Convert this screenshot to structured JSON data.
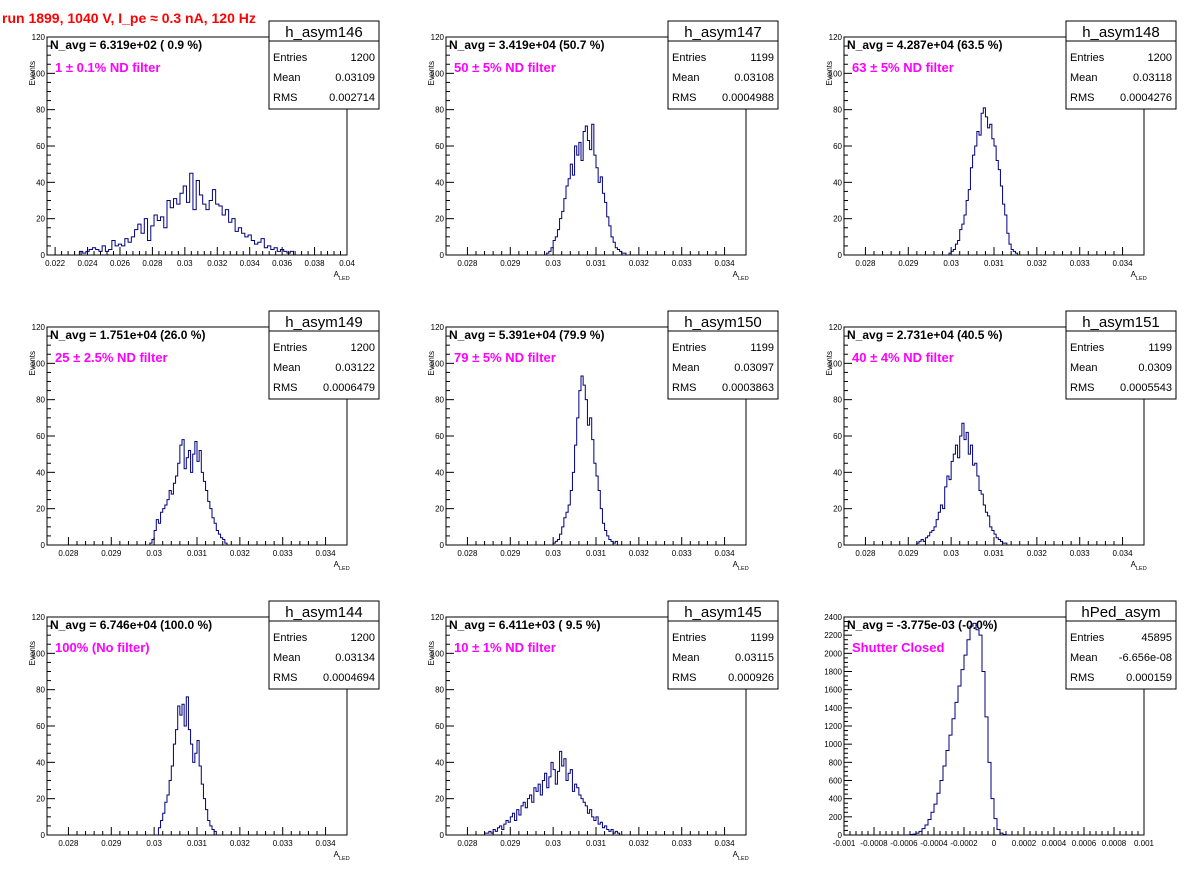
{
  "page_title": "run 1899,  1040 V, I_pe ≈ 0.3 nA, 120 Hz",
  "colors": {
    "histogram_line": "#000080",
    "annotation": "#ff00ff",
    "run_title": "#ff0000",
    "axis": "#000000"
  },
  "stats_labels": {
    "entries": "Entries",
    "mean": "Mean",
    "rms": "RMS"
  },
  "chart_data": [
    {
      "type": "histogram",
      "name": "h_asym146",
      "nstat": "N_avg = 6.319e+02 ( 0.9 %)",
      "filter_label": "1 ± 0.1% ND filter",
      "stats": {
        "entries": "1200",
        "mean": "0.03109",
        "rms": "0.002714"
      },
      "xlabel": "A",
      "xlabel_sub": "LED",
      "ylabel": "Events",
      "xlim": [
        0.0215,
        0.04
      ],
      "ylim": [
        0,
        120
      ],
      "xticks": [
        0.022,
        0.024,
        0.026,
        0.028,
        0.03,
        0.032,
        0.034,
        0.036,
        0.038,
        0.04
      ],
      "xtick_labels": [
        "0.022",
        "0.024",
        "0.026",
        "0.028",
        "0.03",
        "0.032",
        "0.034",
        "0.036",
        "0.038",
        "0.04"
      ],
      "yticks": [
        0,
        20,
        40,
        60,
        80,
        100,
        120
      ],
      "ytick_labels": [
        "0",
        "20",
        "40",
        "60",
        "80",
        "100",
        "120"
      ],
      "bin_start": 0.0235,
      "bin_width": 0.0002,
      "counts": [
        2,
        1,
        2,
        3,
        4,
        3,
        2,
        5,
        2,
        3,
        8,
        5,
        6,
        5,
        9,
        7,
        10,
        14,
        17,
        12,
        20,
        8,
        16,
        22,
        19,
        21,
        15,
        30,
        26,
        31,
        28,
        34,
        38,
        29,
        45,
        25,
        41,
        33,
        28,
        25,
        30,
        36,
        28,
        27,
        22,
        25,
        18,
        20,
        13,
        15,
        12,
        10,
        11,
        8,
        6,
        7,
        9,
        4,
        5,
        3,
        4,
        2,
        3,
        2,
        1,
        2
      ]
    },
    {
      "type": "histogram",
      "name": "h_asym147",
      "nstat": "N_avg = 3.419e+04 (50.7 %)",
      "filter_label": "50 ± 5% ND filter",
      "stats": {
        "entries": "1199",
        "mean": "0.03108",
        "rms": "0.0004988"
      },
      "xlabel": "A",
      "xlabel_sub": "LED",
      "ylabel": "Events",
      "xlim": [
        0.0275,
        0.0345
      ],
      "ylim": [
        0,
        120
      ],
      "xticks": [
        0.028,
        0.029,
        0.03,
        0.031,
        0.032,
        0.033,
        0.034
      ],
      "xtick_labels": [
        "0.028",
        "0.029",
        "0.03",
        "0.031",
        "0.032",
        "0.033",
        "0.034"
      ],
      "yticks": [
        0,
        20,
        40,
        60,
        80,
        100,
        120
      ],
      "ytick_labels": [
        "0",
        "20",
        "40",
        "60",
        "80",
        "100",
        "120"
      ],
      "bin_start": 0.02985,
      "bin_width": 5e-05,
      "counts": [
        1,
        2,
        4,
        8,
        10,
        14,
        20,
        24,
        31,
        38,
        42,
        50,
        44,
        60,
        55,
        62,
        52,
        68,
        71,
        63,
        58,
        72,
        55,
        48,
        40,
        43,
        34,
        29,
        21,
        16,
        10,
        7,
        4,
        3,
        2,
        1,
        1
      ]
    },
    {
      "type": "histogram",
      "name": "h_asym148",
      "nstat": "N_avg = 4.287e+04 (63.5 %)",
      "filter_label": "63 ± 5% ND filter",
      "stats": {
        "entries": "1200",
        "mean": "0.03118",
        "rms": "0.0004276"
      },
      "xlabel": "A",
      "xlabel_sub": "LED",
      "ylabel": "Events",
      "xlim": [
        0.0275,
        0.0345
      ],
      "ylim": [
        0,
        120
      ],
      "xticks": [
        0.028,
        0.029,
        0.03,
        0.031,
        0.032,
        0.033,
        0.034
      ],
      "xtick_labels": [
        "0.028",
        "0.029",
        "0.03",
        "0.031",
        "0.032",
        "0.033",
        "0.034"
      ],
      "yticks": [
        0,
        20,
        40,
        60,
        80,
        100,
        120
      ],
      "ytick_labels": [
        "0",
        "20",
        "40",
        "60",
        "80",
        "100",
        "120"
      ],
      "bin_start": 0.02995,
      "bin_width": 5e-05,
      "counts": [
        1,
        2,
        3,
        6,
        8,
        14,
        17,
        22,
        30,
        36,
        48,
        55,
        60,
        68,
        66,
        78,
        81,
        76,
        70,
        72,
        64,
        60,
        52,
        47,
        38,
        28,
        22,
        12,
        6,
        3,
        2,
        1
      ]
    },
    {
      "type": "histogram",
      "name": "h_asym149",
      "nstat": "N_avg = 1.751e+04 (26.0 %)",
      "filter_label": "25 ± 2.5% ND filter",
      "stats": {
        "entries": "1200",
        "mean": "0.03122",
        "rms": "0.0006479"
      },
      "xlabel": "A",
      "xlabel_sub": "LED",
      "ylabel": "Events",
      "xlim": [
        0.0275,
        0.0345
      ],
      "ylim": [
        0,
        120
      ],
      "xticks": [
        0.028,
        0.029,
        0.03,
        0.031,
        0.032,
        0.033,
        0.034
      ],
      "xtick_labels": [
        "0.028",
        "0.029",
        "0.03",
        "0.031",
        "0.032",
        "0.033",
        "0.034"
      ],
      "yticks": [
        0,
        20,
        40,
        60,
        80,
        100,
        120
      ],
      "ytick_labels": [
        "0",
        "20",
        "40",
        "60",
        "80",
        "100",
        "120"
      ],
      "bin_start": 0.0299,
      "bin_width": 5e-05,
      "counts": [
        1,
        3,
        8,
        14,
        12,
        18,
        20,
        22,
        25,
        30,
        28,
        34,
        38,
        45,
        55,
        58,
        42,
        48,
        52,
        40,
        50,
        57,
        46,
        52,
        40,
        35,
        30,
        24,
        20,
        15,
        12,
        8,
        6,
        4,
        3,
        1
      ]
    },
    {
      "type": "histogram",
      "name": "h_asym150",
      "nstat": "N_avg = 5.391e+04 (79.9 %)",
      "filter_label": "79 ± 5% ND filter",
      "stats": {
        "entries": "1199",
        "mean": "0.03097",
        "rms": "0.0003863"
      },
      "xlabel": "A",
      "xlabel_sub": "LED",
      "ylabel": "Events",
      "xlim": [
        0.0275,
        0.0345
      ],
      "ylim": [
        0,
        120
      ],
      "xticks": [
        0.028,
        0.029,
        0.03,
        0.031,
        0.032,
        0.033,
        0.034
      ],
      "xtick_labels": [
        "0.028",
        "0.029",
        "0.03",
        "0.031",
        "0.032",
        "0.033",
        "0.034"
      ],
      "yticks": [
        0,
        20,
        40,
        60,
        80,
        100,
        120
      ],
      "ytick_labels": [
        "0",
        "20",
        "40",
        "60",
        "80",
        "100",
        "120"
      ],
      "bin_start": 0.03,
      "bin_width": 5e-05,
      "counts": [
        1,
        2,
        3,
        6,
        10,
        15,
        18,
        22,
        30,
        40,
        55,
        70,
        85,
        93,
        88,
        80,
        66,
        70,
        58,
        45,
        38,
        30,
        20,
        12,
        8,
        5,
        3,
        2,
        1,
        2
      ]
    },
    {
      "type": "histogram",
      "name": "h_asym151",
      "nstat": "N_avg = 2.731e+04 (40.5 %)",
      "filter_label": "40 ± 4% ND filter",
      "stats": {
        "entries": "1199",
        "mean": "0.0309",
        "rms": "0.0005543"
      },
      "xlabel": "A",
      "xlabel_sub": "LED",
      "ylabel": "Events",
      "xlim": [
        0.0275,
        0.0345
      ],
      "ylim": [
        0,
        120
      ],
      "xticks": [
        0.028,
        0.029,
        0.03,
        0.031,
        0.032,
        0.033,
        0.034
      ],
      "xtick_labels": [
        "0.028",
        "0.029",
        "0.03",
        "0.031",
        "0.032",
        "0.033",
        "0.034"
      ],
      "yticks": [
        0,
        20,
        40,
        60,
        80,
        100,
        120
      ],
      "ytick_labels": [
        "0",
        "20",
        "40",
        "60",
        "80",
        "100",
        "120"
      ],
      "bin_start": 0.0292,
      "bin_width": 5e-05,
      "counts": [
        1,
        2,
        3,
        2,
        4,
        5,
        7,
        8,
        10,
        14,
        18,
        22,
        20,
        32,
        38,
        36,
        46,
        50,
        55,
        48,
        60,
        67,
        58,
        62,
        50,
        55,
        44,
        45,
        38,
        30,
        28,
        22,
        18,
        16,
        10,
        8,
        6,
        4,
        3,
        2,
        1,
        1
      ]
    },
    {
      "type": "histogram",
      "name": "h_asym144",
      "nstat": "N_avg = 6.746e+04 (100.0 %)",
      "filter_label": "100% (No filter)",
      "stats": {
        "entries": "1200",
        "mean": "0.03134",
        "rms": "0.0004694"
      },
      "xlabel": "A",
      "xlabel_sub": "LED",
      "ylabel": "Events",
      "xlim": [
        0.0275,
        0.0345
      ],
      "ylim": [
        0,
        120
      ],
      "xticks": [
        0.028,
        0.029,
        0.03,
        0.031,
        0.032,
        0.033,
        0.034
      ],
      "xtick_labels": [
        "0.028",
        "0.029",
        "0.03",
        "0.031",
        "0.032",
        "0.033",
        "0.034"
      ],
      "yticks": [
        0,
        20,
        40,
        60,
        80,
        100,
        120
      ],
      "ytick_labels": [
        "0",
        "20",
        "40",
        "60",
        "80",
        "100",
        "120"
      ],
      "bin_start": 0.0301,
      "bin_width": 5e-05,
      "counts": [
        4,
        8,
        12,
        18,
        22,
        30,
        38,
        50,
        58,
        71,
        66,
        72,
        60,
        76,
        58,
        50,
        40,
        45,
        52,
        38,
        28,
        20,
        14,
        8,
        5,
        3,
        2
      ]
    },
    {
      "type": "histogram",
      "name": "h_asym145",
      "nstat": "N_avg = 6.411e+03 ( 9.5 %)",
      "filter_label": "10 ± 1% ND filter",
      "stats": {
        "entries": "1199",
        "mean": "0.03115",
        "rms": "0.000926"
      },
      "xlabel": "A",
      "xlabel_sub": "LED",
      "ylabel": "Events",
      "xlim": [
        0.0275,
        0.0345
      ],
      "ylim": [
        0,
        120
      ],
      "xticks": [
        0.028,
        0.029,
        0.03,
        0.031,
        0.032,
        0.033,
        0.034
      ],
      "xtick_labels": [
        "0.028",
        "0.029",
        "0.03",
        "0.031",
        "0.032",
        "0.033",
        "0.034"
      ],
      "yticks": [
        0,
        20,
        40,
        60,
        80,
        100,
        120
      ],
      "ytick_labels": [
        "0",
        "20",
        "40",
        "60",
        "80",
        "100",
        "120"
      ],
      "bin_start": 0.0284,
      "bin_width": 5e-05,
      "counts": [
        1,
        1,
        2,
        1,
        3,
        2,
        4,
        5,
        3,
        6,
        8,
        7,
        10,
        12,
        8,
        14,
        11,
        16,
        18,
        15,
        20,
        22,
        18,
        26,
        24,
        28,
        22,
        30,
        34,
        26,
        32,
        40,
        36,
        28,
        35,
        46,
        38,
        42,
        30,
        34,
        36,
        24,
        28,
        26,
        22,
        20,
        18,
        16,
        12,
        14,
        10,
        8,
        10,
        6,
        7,
        4,
        5,
        3,
        2,
        3,
        1,
        2,
        1
      ]
    },
    {
      "type": "histogram",
      "name": "hPed_asym",
      "nstat": "N_avg = -3.775e-03 (-0.0%)",
      "filter_label": "Shutter Closed",
      "stats": {
        "entries": "45895",
        "mean": "-6.656e-08",
        "rms": "0.000159"
      },
      "xlabel": "",
      "xlabel_sub": "",
      "ylabel": "",
      "xlim": [
        -0.001,
        0.001
      ],
      "ylim": [
        0,
        2400
      ],
      "xticks": [
        -0.001,
        -0.0008,
        -0.0006,
        -0.0004,
        -0.0002,
        0,
        0.0002,
        0.0004,
        0.0006,
        0.0008,
        0.001
      ],
      "xtick_labels": [
        "-0.001",
        "-0.0008",
        "-0.0006",
        "-0.0004",
        "-0.0002",
        "0",
        "0.0002",
        "0.0004",
        "0.0006",
        "0.0008",
        "0.001"
      ],
      "yticks": [
        0,
        200,
        400,
        600,
        800,
        1000,
        1200,
        1400,
        1600,
        1800,
        2000,
        2200,
        2400
      ],
      "ytick_labels": [
        "0",
        "200",
        "400",
        "600",
        "800",
        "1000",
        "1200",
        "1400",
        "1600",
        "1800",
        "2000",
        "2200",
        "2400"
      ],
      "bin_start": -0.00058,
      "bin_width": 2e-05,
      "counts": [
        2,
        5,
        10,
        20,
        40,
        70,
        110,
        170,
        250,
        340,
        460,
        600,
        760,
        930,
        1100,
        1280,
        1460,
        1640,
        1820,
        1980,
        2150,
        2300,
        2330,
        2260,
        2200,
        1800,
        1300,
        800,
        400,
        180,
        60,
        20,
        6,
        2
      ]
    }
  ]
}
